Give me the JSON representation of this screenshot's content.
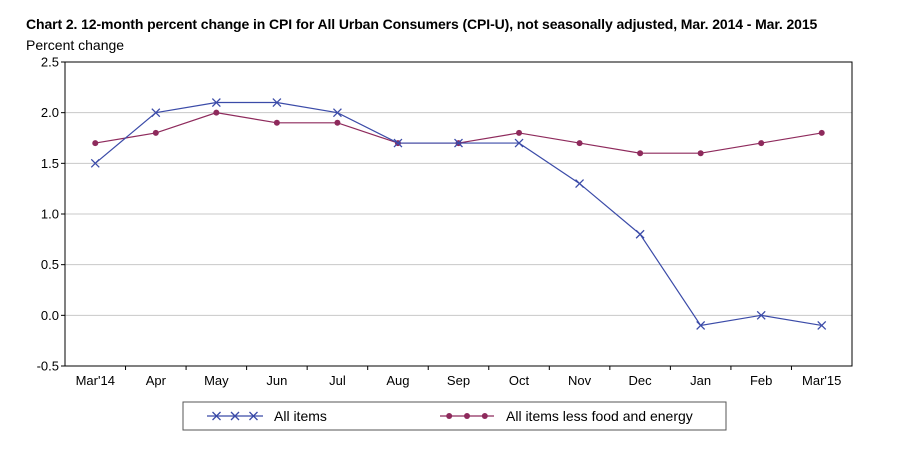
{
  "chart_data": {
    "type": "line",
    "title": "Chart 2. 12-month percent change in CPI for All Urban Consumers (CPI-U), not seasonally adjusted, Mar. 2014 - Mar. 2015",
    "ylabel": "Percent change",
    "xlabel": "",
    "categories": [
      "Mar'14",
      "Apr",
      "May",
      "Jun",
      "Jul",
      "Aug",
      "Sep",
      "Oct",
      "Nov",
      "Dec",
      "Jan",
      "Feb",
      "Mar'15"
    ],
    "ylim": [
      -0.5,
      2.5
    ],
    "yticks": [
      "2.5",
      "2.0",
      "1.5",
      "1.0",
      "0.5",
      "0.0",
      "-0.5"
    ],
    "ytick_values": [
      2.5,
      2.0,
      1.5,
      1.0,
      0.5,
      0.0,
      -0.5
    ],
    "grid": "horizontal",
    "legend_position": "bottom",
    "series": [
      {
        "name": "All items",
        "marker": "x",
        "color": "#3b4ba8",
        "values": [
          1.5,
          2.0,
          2.1,
          2.1,
          2.0,
          1.7,
          1.7,
          1.7,
          1.3,
          0.8,
          -0.1,
          0.0,
          -0.1
        ]
      },
      {
        "name": "All items less food and energy",
        "marker": "dot",
        "color": "#8e2a5c",
        "values": [
          1.7,
          1.8,
          2.0,
          1.9,
          1.9,
          1.7,
          1.7,
          1.8,
          1.7,
          1.6,
          1.6,
          1.7,
          1.8
        ]
      }
    ]
  }
}
